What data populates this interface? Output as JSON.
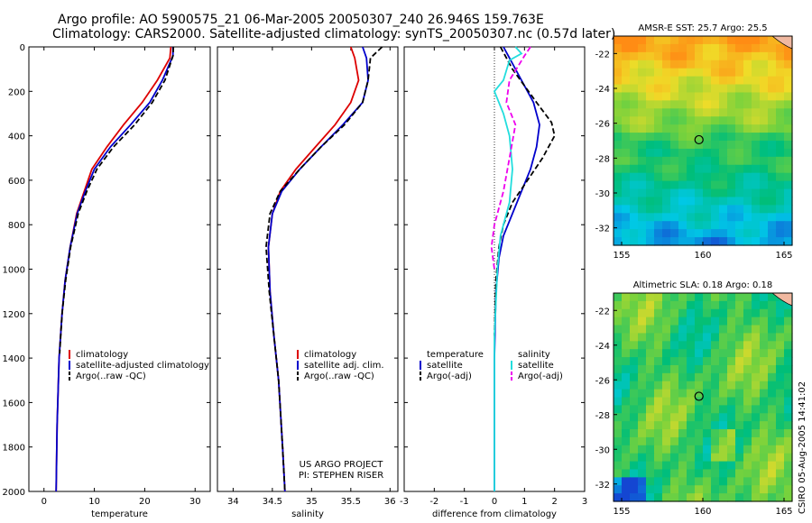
{
  "title_line1": "Argo profile: AO 5900575_21 06-Mar-2005 20050307_240 26.946S 159.763E",
  "title_line2": "Climatology: CARS2000. Satellite-adjusted climatology: synTS_20050307.nc (0.57d later)",
  "signature": [
    "US ARGO PROJECT",
    "PI: STEPHEN RISER"
  ],
  "timestamp": "CSIRO 05-Aug-2005 14:41:02",
  "colors": {
    "climatology": "#dd0000",
    "satellite": "#0000cc",
    "argo": "#000000",
    "salinity_satellite": "#22dddd",
    "salinity_argo": "#ee00ee"
  },
  "chart_data": [
    {
      "type": "line",
      "xlabel": "temperature",
      "ylabel": "",
      "xlim": [
        -3,
        33
      ],
      "ylim": [
        2000,
        0
      ],
      "xticks": [
        0,
        10,
        20,
        30
      ],
      "yticks": [
        0,
        200,
        400,
        600,
        800,
        1000,
        1200,
        1400,
        1600,
        1800,
        2000
      ],
      "legend": [
        "climatology",
        "satellite-adjusted climatology",
        "Argo(..raw -QC)"
      ],
      "legend_position": "bottom-right",
      "series": [
        {
          "name": "climatology",
          "color": "#dd0000",
          "dash": "",
          "x": [
            25.2,
            25.0,
            22.5,
            19.5,
            15.8,
            12.5,
            9.5,
            8.0,
            6.5,
            5.2,
            4.2,
            3.6,
            3.0,
            2.6,
            2.4
          ],
          "y": [
            0,
            50,
            150,
            250,
            350,
            450,
            550,
            650,
            750,
            900,
            1050,
            1200,
            1400,
            1700,
            2000
          ]
        },
        {
          "name": "satellite-adjusted climatology",
          "color": "#0000cc",
          "dash": "",
          "x": [
            25.6,
            25.6,
            23.5,
            21.0,
            17.2,
            13.2,
            10.0,
            8.2,
            6.6,
            5.2,
            4.2,
            3.6,
            3.0,
            2.6,
            2.4
          ],
          "y": [
            0,
            40,
            150,
            250,
            350,
            450,
            550,
            650,
            750,
            900,
            1050,
            1200,
            1400,
            1700,
            2000
          ]
        },
        {
          "name": "Argo(..raw -QC)",
          "color": "#000000",
          "dash": "6,3",
          "x": [
            25.7,
            25.6,
            24.0,
            21.5,
            18.0,
            13.8,
            10.5,
            8.5,
            6.8,
            5.3,
            4.3,
            3.6,
            3.1
          ],
          "y": [
            0,
            40,
            150,
            250,
            350,
            450,
            550,
            650,
            750,
            900,
            1050,
            1200,
            1380
          ]
        }
      ]
    },
    {
      "type": "line",
      "xlabel": "salinity",
      "ylabel": "",
      "xlim": [
        33.8,
        36.1
      ],
      "ylim": [
        2000,
        0
      ],
      "xticks": [
        34,
        34.5,
        35,
        35.5,
        36
      ],
      "yticks": [
        0,
        200,
        400,
        600,
        800,
        1000,
        1200,
        1400,
        1600,
        1800,
        2000
      ],
      "legend": [
        "climatology",
        "satellite adj. clim.",
        "Argo(..raw -QC)"
      ],
      "legend_position": "bottom-right",
      "series": [
        {
          "name": "climatology",
          "color": "#dd0000",
          "dash": "",
          "x": [
            35.5,
            35.55,
            35.6,
            35.5,
            35.3,
            35.05,
            34.8,
            34.6,
            34.5,
            34.45,
            34.47,
            34.52,
            34.58,
            34.63,
            34.66
          ],
          "y": [
            0,
            50,
            150,
            250,
            350,
            450,
            550,
            650,
            750,
            900,
            1100,
            1300,
            1500,
            1800,
            2000
          ]
        },
        {
          "name": "satellite adj. clim.",
          "color": "#0000cc",
          "dash": "",
          "x": [
            35.65,
            35.7,
            35.72,
            35.65,
            35.4,
            35.12,
            34.85,
            34.62,
            34.5,
            34.45,
            34.47,
            34.52,
            34.58,
            34.63,
            34.66
          ],
          "y": [
            0,
            50,
            150,
            250,
            350,
            450,
            550,
            650,
            750,
            900,
            1100,
            1300,
            1500,
            1800,
            2000
          ]
        },
        {
          "name": "Argo(..raw -QC)",
          "color": "#000000",
          "dash": "6,3",
          "x": [
            35.9,
            35.75,
            35.72,
            35.65,
            35.42,
            35.12,
            34.85,
            34.6,
            34.47,
            34.42,
            34.46,
            34.52,
            34.58,
            34.63,
            34.66
          ],
          "y": [
            0,
            50,
            150,
            250,
            350,
            450,
            550,
            650,
            750,
            900,
            1100,
            1300,
            1500,
            1800,
            2000
          ]
        }
      ]
    },
    {
      "type": "line",
      "xlabel": "difference from climatology",
      "ylabel": "",
      "xlim": [
        -3,
        3
      ],
      "ylim": [
        2000,
        0
      ],
      "xticks": [
        -3,
        -2,
        -1,
        0,
        1,
        2,
        3
      ],
      "yticks": [
        0,
        200,
        400,
        600,
        800,
        1000,
        1200,
        1400,
        1600,
        1800,
        2000
      ],
      "legend": [
        "temperature",
        "satellite",
        "Argo(-adj)",
        "salinity",
        "satellite",
        "Argo(-adj)"
      ],
      "legend_position": "bottom",
      "series": [
        {
          "name": "temperature satellite",
          "color": "#0000cc",
          "dash": "",
          "x": [
            0.3,
            0.5,
            0.9,
            1.3,
            1.5,
            1.4,
            1.2,
            0.9,
            0.6,
            0.3,
            0.15,
            0.05,
            0.0,
            0.0
          ],
          "y": [
            0,
            50,
            150,
            250,
            350,
            450,
            550,
            650,
            750,
            850,
            950,
            1100,
            1400,
            2000
          ]
        },
        {
          "name": "temperature Argo(-adj)",
          "color": "#000000",
          "dash": "6,3",
          "x": [
            0.2,
            0.6,
            1.4,
            1.9,
            2.0,
            1.6,
            1.1,
            0.6,
            0.3,
            0.15,
            0.05,
            0.0
          ],
          "y": [
            0,
            100,
            250,
            340,
            400,
            500,
            600,
            700,
            800,
            900,
            1050,
            1300
          ]
        },
        {
          "name": "salinity satellite",
          "color": "#22dddd",
          "dash": "",
          "x": [
            0.7,
            0.9,
            0.5,
            0.3,
            0.0,
            0.3,
            0.5,
            0.6,
            0.5,
            0.2,
            0.1,
            0.0,
            0.0
          ],
          "y": [
            0,
            30,
            60,
            150,
            200,
            300,
            400,
            550,
            700,
            850,
            1000,
            1300,
            2000
          ]
        },
        {
          "name": "salinity Argo(-adj)",
          "color": "#ee00ee",
          "dash": "6,3",
          "x": [
            1.2,
            1.0,
            0.5,
            0.4,
            0.7,
            0.5,
            0.3,
            0.0,
            -0.1,
            0.0
          ],
          "y": [
            0,
            40,
            150,
            250,
            350,
            500,
            650,
            800,
            900,
            1000
          ]
        }
      ]
    },
    {
      "type": "heatmap",
      "title": "AMSR-E SST: 25.7 Argo: 25.5",
      "xlim": [
        154.5,
        165.5
      ],
      "ylim": [
        -33,
        -21
      ],
      "xticks": [
        155,
        160,
        165
      ],
      "yticks": [
        -22,
        -24,
        -26,
        -28,
        -30,
        -32
      ],
      "marker": {
        "lon": 159.763,
        "lat": -26.946
      }
    },
    {
      "type": "heatmap",
      "title": "Altimetric SLA: 0.18 Argo: 0.18",
      "xlim": [
        154.5,
        165.5
      ],
      "ylim": [
        -33,
        -21
      ],
      "xticks": [
        155,
        160,
        165
      ],
      "yticks": [
        -22,
        -24,
        -26,
        -28,
        -30,
        -32
      ],
      "marker": {
        "lon": 159.763,
        "lat": -26.946
      }
    }
  ]
}
